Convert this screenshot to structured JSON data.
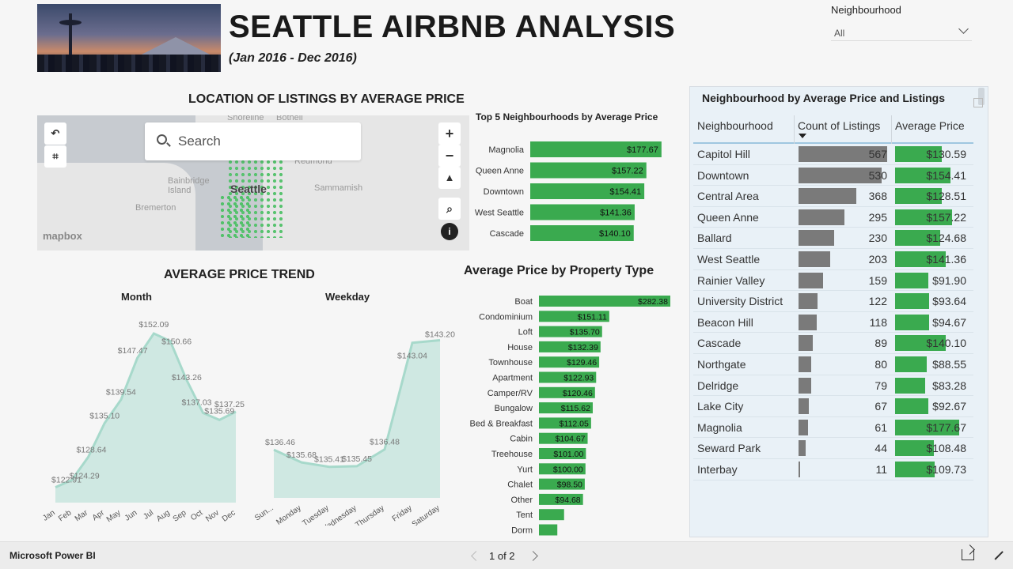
{
  "header": {
    "title": "SEATTLE AIRBNB ANALYSIS",
    "subtitle": "(Jan 2016 - Dec 2016)"
  },
  "slicer": {
    "label": "Neighbourhood",
    "value": "All"
  },
  "map": {
    "title": "LOCATION OF LISTINGS BY AVERAGE PRICE",
    "search_placeholder": "Search",
    "labels": [
      "Shoreline",
      "Bothell",
      "Redmond",
      "Bainbridge Island",
      "Seattle",
      "Sammamish",
      "Bremerton"
    ],
    "logo": "mapbox",
    "zoom_in": "+",
    "zoom_out": "−"
  },
  "top5": {
    "title": "Top 5 Neighbourhoods by Average Price",
    "categories": [
      "Magnolia",
      "Queen Anne",
      "Downtown",
      "West Seattle",
      "Cascade"
    ],
    "values": [
      177.67,
      157.22,
      154.41,
      141.36,
      140.1
    ],
    "labels": [
      "$177.67",
      "$157.22",
      "$154.41",
      "$141.36",
      "$140.10"
    ],
    "color": "#3aaa4f"
  },
  "trend": {
    "title": "AVERAGE PRICE TREND",
    "month_title": "Month",
    "weekday_title": "Weekday"
  },
  "property": {
    "title": "Average Price by Property Type"
  },
  "chart_data": [
    {
      "type": "area",
      "title": "Month",
      "x": [
        "Jan",
        "Feb",
        "Mar",
        "Apr",
        "May",
        "Jun",
        "Jul",
        "Aug",
        "Sep",
        "Oct",
        "Nov",
        "Dec"
      ],
      "values": [
        122.91,
        124.29,
        128.64,
        135.1,
        139.54,
        147.47,
        152.09,
        150.66,
        143.26,
        137.03,
        135.69,
        137.25
      ],
      "labels": [
        "$122.91",
        "$124.29",
        "$128.64",
        "$135.10",
        "$139.54",
        "$147.47",
        "$152.09",
        "$150.66",
        "$143.26",
        "$137.03",
        "$135.69",
        "$137.25"
      ],
      "color": "#cfe8e2"
    },
    {
      "type": "area",
      "title": "Weekday",
      "x": [
        "Sunday",
        "Monday",
        "Tuesday",
        "Wednesday",
        "Thursday",
        "Friday",
        "Saturday"
      ],
      "x_labels": [
        "Sun...",
        "Monday",
        "Tuesday",
        "Wednesday",
        "Thursday",
        "Friday",
        "Saturday"
      ],
      "values": [
        136.46,
        135.68,
        135.41,
        135.45,
        136.48,
        143.04,
        143.2
      ],
      "labels": [
        "$136.46",
        "$135.68",
        "$135.41",
        "$135.45",
        "$136.48",
        "$143.04",
        "$143.20"
      ],
      "color": "#cfe8e2"
    },
    {
      "type": "bar",
      "title": "Average Price by Property Type",
      "categories": [
        "Boat",
        "Condominium",
        "Loft",
        "House",
        "Townhouse",
        "Apartment",
        "Camper/RV",
        "Bungalow",
        "Bed & Breakfast",
        "Cabin",
        "Treehouse",
        "Yurt",
        "Chalet",
        "Other",
        "Tent",
        "Dorm"
      ],
      "values": [
        282.38,
        151.11,
        135.7,
        132.39,
        129.46,
        122.93,
        120.46,
        115.62,
        112.05,
        104.67,
        101.0,
        100.0,
        98.5,
        94.68,
        54,
        39.5
      ],
      "labels": [
        "$282.38",
        "$151.11",
        "$135.70",
        "$132.39",
        "$129.46",
        "$122.93",
        "$120.46",
        "$115.62",
        "$112.05",
        "$104.67",
        "$101.00",
        "$100.00",
        "$98.50",
        "$94.68",
        "",
        ""
      ],
      "color": "#3aaa4f"
    }
  ],
  "table": {
    "title": "Neighbourhood by Average Price and Listings",
    "columns": [
      "Neighbourhood",
      "Count of Listings",
      "Average Price"
    ],
    "rows": [
      {
        "name": "Capitol Hill",
        "count": 567,
        "count_label": "567",
        "price": 130.59,
        "price_label": "$130.59"
      },
      {
        "name": "Downtown",
        "count": 530,
        "count_label": "530",
        "price": 154.41,
        "price_label": "$154.41"
      },
      {
        "name": "Central Area",
        "count": 368,
        "count_label": "368",
        "price": 128.51,
        "price_label": "$128.51"
      },
      {
        "name": "Queen Anne",
        "count": 295,
        "count_label": "295",
        "price": 157.22,
        "price_label": "$157.22"
      },
      {
        "name": "Ballard",
        "count": 230,
        "count_label": "230",
        "price": 124.68,
        "price_label": "$124.68"
      },
      {
        "name": "West Seattle",
        "count": 203,
        "count_label": "203",
        "price": 141.36,
        "price_label": "$141.36"
      },
      {
        "name": "Rainier Valley",
        "count": 159,
        "count_label": "159",
        "price": 91.9,
        "price_label": "$91.90"
      },
      {
        "name": "University District",
        "count": 122,
        "count_label": "122",
        "price": 93.64,
        "price_label": "$93.64"
      },
      {
        "name": "Beacon Hill",
        "count": 118,
        "count_label": "118",
        "price": 94.67,
        "price_label": "$94.67"
      },
      {
        "name": "Cascade",
        "count": 89,
        "count_label": "89",
        "price": 140.1,
        "price_label": "$140.10"
      },
      {
        "name": "Northgate",
        "count": 80,
        "count_label": "80",
        "price": 88.55,
        "price_label": "$88.55"
      },
      {
        "name": "Delridge",
        "count": 79,
        "count_label": "79",
        "price": 83.28,
        "price_label": "$83.28"
      },
      {
        "name": "Lake City",
        "count": 67,
        "count_label": "67",
        "price": 92.67,
        "price_label": "$92.67"
      },
      {
        "name": "Magnolia",
        "count": 61,
        "count_label": "61",
        "price": 177.67,
        "price_label": "$177.67"
      },
      {
        "name": "Seward Park",
        "count": 44,
        "count_label": "44",
        "price": 108.48,
        "price_label": "$108.48"
      },
      {
        "name": "Interbay",
        "count": 11,
        "count_label": "11",
        "price": 109.73,
        "price_label": "$109.73"
      }
    ],
    "count_color": "#7a7a7a",
    "price_color": "#3aaa4f"
  },
  "footer": {
    "brand": "Microsoft Power BI",
    "pager": "1 of 2"
  }
}
